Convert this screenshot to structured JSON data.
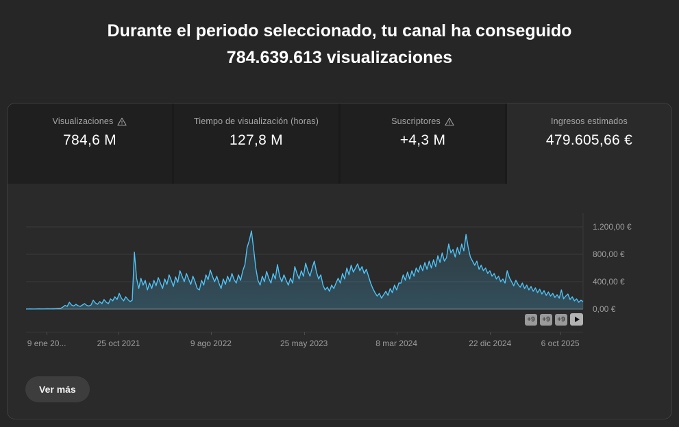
{
  "header": {
    "title_line1": "Durante el periodo seleccionado, tu canal ha conseguido",
    "title_line2": "784.639.613 visualizaciones"
  },
  "metrics": {
    "cards": [
      {
        "label": "Visualizaciones",
        "value": "784,6 M",
        "warning": true,
        "selected": false
      },
      {
        "label": "Tiempo de visualización (horas)",
        "value": "127,8 M",
        "warning": false,
        "selected": false
      },
      {
        "label": "Suscriptores",
        "value": "+4,3 M",
        "warning": true,
        "selected": false
      },
      {
        "label": "Ingresos estimados",
        "value": "479.605,66 €",
        "warning": false,
        "selected": true
      }
    ]
  },
  "chart_data": {
    "type": "area",
    "selected_metric": "Ingresos estimados",
    "line_color": "#4fc3f7",
    "grid_color": "#3b3b3b",
    "zero_line_color": "#7d7d7d",
    "ylim": [
      0,
      1400
    ],
    "y_ticks": [
      0,
      400,
      800,
      1200
    ],
    "y_tick_labels": [
      "0,00 €",
      "400,00 €",
      "800,00 €",
      "1.200,00 €"
    ],
    "x_tick_labels": [
      "9 ene 20...",
      "25 oct 2021",
      "9 ago 2022",
      "25 may 2023",
      "8 mar 2024",
      "22 dic 2024",
      "6 oct 2025"
    ],
    "x_tick_positions": [
      0.037,
      0.166,
      0.332,
      0.499,
      0.665,
      0.833,
      0.959
    ],
    "values": [
      2,
      2,
      3,
      2,
      2,
      3,
      4,
      3,
      3,
      4,
      5,
      4,
      6,
      5,
      8,
      10,
      12,
      30,
      55,
      40,
      100,
      60,
      45,
      70,
      50,
      40,
      60,
      80,
      55,
      45,
      60,
      130,
      90,
      70,
      110,
      80,
      140,
      100,
      80,
      150,
      120,
      180,
      140,
      230,
      160,
      120,
      180,
      140,
      110,
      130,
      830,
      450,
      300,
      450,
      350,
      420,
      280,
      380,
      300,
      420,
      340,
      460,
      380,
      300,
      440,
      360,
      500,
      420,
      330,
      470,
      390,
      560,
      480,
      400,
      520,
      440,
      360,
      480,
      400,
      300,
      280,
      420,
      350,
      500,
      430,
      570,
      480,
      400,
      480,
      380,
      300,
      440,
      360,
      480,
      400,
      520,
      430,
      380,
      500,
      420,
      560,
      650,
      900,
      1000,
      1140,
      880,
      600,
      420,
      350,
      480,
      400,
      550,
      450,
      380,
      520,
      440,
      650,
      480,
      400,
      500,
      420,
      350,
      450,
      380,
      620,
      520,
      440,
      560,
      480,
      670,
      560,
      480,
      600,
      700,
      540,
      440,
      500,
      350,
      280,
      320,
      260,
      350,
      300,
      380,
      450,
      380,
      520,
      440,
      600,
      500,
      640,
      540,
      600,
      660,
      560,
      620,
      520,
      580,
      480,
      380,
      300,
      240,
      190,
      230,
      160,
      210,
      260,
      200,
      300,
      240,
      350,
      280,
      380,
      380,
      500,
      420,
      540,
      440,
      560,
      480,
      600,
      540,
      640,
      560,
      680,
      580,
      700,
      600,
      720,
      620,
      780,
      680,
      820,
      700,
      750,
      950,
      820,
      870,
      760,
      900,
      800,
      950,
      850,
      1090,
      900,
      760,
      700,
      640,
      700,
      580,
      640,
      560,
      600,
      520,
      560,
      480,
      520,
      440,
      480,
      400,
      440,
      380,
      560,
      460,
      400,
      340,
      420,
      360,
      320,
      380,
      300,
      350,
      280,
      330,
      260,
      310,
      240,
      290,
      220,
      270,
      200,
      250,
      190,
      230,
      170,
      210,
      160,
      280,
      150,
      190,
      220,
      140,
      180,
      120,
      150,
      100,
      130,
      110
    ]
  },
  "chart_overlay": {
    "badges": [
      "+9",
      "+9",
      "+9"
    ]
  },
  "footer": {
    "ver_mas_label": "Ver más"
  }
}
